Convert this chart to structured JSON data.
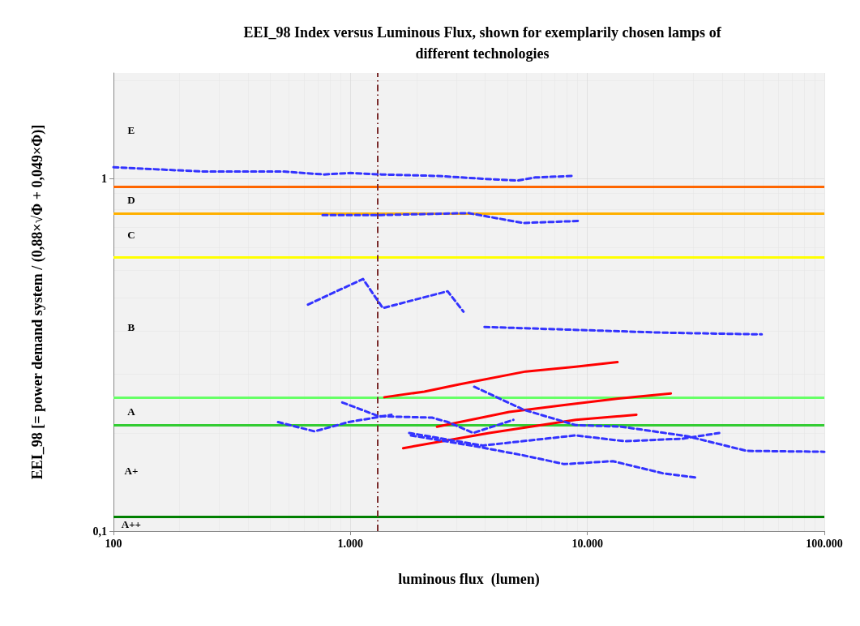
{
  "chart_data": {
    "type": "line",
    "title": "EEI_98 Index versus Luminous Flux, shown for exemplarily chosen lamps of\ndifferent technologies",
    "xlabel": "luminous flux  (lumen)",
    "ylabel": "EEI_98 [= power demand system / (0,88×√Φ + 0,049×Φ)]",
    "log": "xy",
    "grid": true,
    "marker": "none",
    "xlim": [
      100,
      100000
    ],
    "xticks": [
      100,
      {
        "value": 1000,
        "label": "1.000"
      },
      {
        "value": 10000,
        "label": "10.000"
      },
      {
        "value": 100000,
        "label": "100.000"
      }
    ],
    "ylim": [
      0.1,
      2
    ],
    "yticks": [
      {
        "value": 0.1,
        "label": "0,1"
      },
      1
    ],
    "series": [
      {
        "color": "#3333ff",
        "line_style": "dashed",
        "x": [
          100,
          238,
          523,
          774,
          1000,
          1350,
          2330,
          3740,
          5100,
          6000,
          8700
        ],
        "values": [
          1.08,
          1.05,
          1.05,
          1.03,
          1.04,
          1.03,
          1.02,
          1.0,
          0.99,
          1.01,
          1.02
        ]
      },
      {
        "color": "#3333ff",
        "line_style": "dashed",
        "x": [
          763,
          1350,
          3150,
          5370,
          9190
        ],
        "values": [
          0.79,
          0.79,
          0.8,
          0.75,
          0.76
        ]
      },
      {
        "color": "#3333ff",
        "line_style": "dashed",
        "x": [
          662,
          1130,
          1370,
          2570,
          3000
        ],
        "values": [
          0.44,
          0.52,
          0.43,
          0.48,
          0.42
        ]
      },
      {
        "color": "#3333ff",
        "line_style": "dashed",
        "x": [
          3680,
          12800,
          21200,
          54400
        ],
        "values": [
          0.38,
          0.37,
          0.366,
          0.362
        ]
      },
      {
        "color": "#ff0000",
        "line_style": "solid",
        "x": [
          1390,
          2050,
          2880,
          5490,
          8930,
          13400
        ],
        "values": [
          0.24,
          0.249,
          0.261,
          0.284,
          0.293,
          0.302
        ]
      },
      {
        "color": "#ff0000",
        "line_style": "solid",
        "x": [
          2320,
          4680,
          7980,
          13500,
          22500
        ],
        "values": [
          0.198,
          0.218,
          0.228,
          0.238,
          0.246
        ]
      },
      {
        "color": "#ff0000",
        "line_style": "solid",
        "x": [
          1670,
          3850,
          8930,
          16100
        ],
        "values": [
          0.172,
          0.19,
          0.207,
          0.214
        ]
      },
      {
        "color": "#3333ff",
        "line_style": "dashed",
        "x": [
          3330,
          5400,
          8930,
          13900,
          26400,
          47000,
          100000
        ],
        "values": [
          0.257,
          0.221,
          0.2,
          0.198,
          0.186,
          0.169,
          0.168
        ]
      },
      {
        "color": "#3333ff",
        "line_style": "dashed",
        "x": [
          924,
          1315,
          2210,
          2580,
          3300,
          4870
        ],
        "values": [
          0.232,
          0.212,
          0.21,
          0.204,
          0.19,
          0.207
        ]
      },
      {
        "color": "#3333ff",
        "line_style": "dashed",
        "x": [
          495,
          706,
          982,
          1490
        ],
        "values": [
          0.204,
          0.192,
          0.204,
          0.214
        ]
      },
      {
        "color": "#3333ff",
        "line_style": "dashed",
        "x": [
          1770,
          3620,
          8930,
          14400,
          25100,
          36000
        ],
        "values": [
          0.19,
          0.175,
          0.187,
          0.18,
          0.183,
          0.19
        ]
      },
      {
        "color": "#3333ff",
        "line_style": "dashed",
        "x": [
          1800,
          3400,
          5400,
          7980,
          12800,
          20800,
          28700
        ],
        "values": [
          0.187,
          0.174,
          0.164,
          0.155,
          0.158,
          0.146,
          0.142
        ]
      }
    ],
    "ref_lines": [
      {
        "axis": "y",
        "value": 0.95,
        "color": "#ff6600",
        "line_style": "solid"
      },
      {
        "axis": "y",
        "value": 0.8,
        "color": "#ffb000",
        "line_style": "solid"
      },
      {
        "axis": "y",
        "value": 0.6,
        "color": "#ffff00",
        "line_style": "solid"
      },
      {
        "axis": "y",
        "value": 0.24,
        "color": "#66ff66",
        "line_style": "solid"
      },
      {
        "axis": "y",
        "value": 0.2,
        "color": "#33cc33",
        "line_style": "solid"
      },
      {
        "axis": "y",
        "value": 0.11,
        "color": "#008000",
        "line_style": "solid"
      },
      {
        "axis": "x",
        "value": 1300,
        "color": "#7b2c2c",
        "line_style": "dashdot"
      }
    ],
    "annotations": [
      "E",
      "D",
      "C",
      "B",
      "A",
      "A+",
      "A++"
    ]
  }
}
